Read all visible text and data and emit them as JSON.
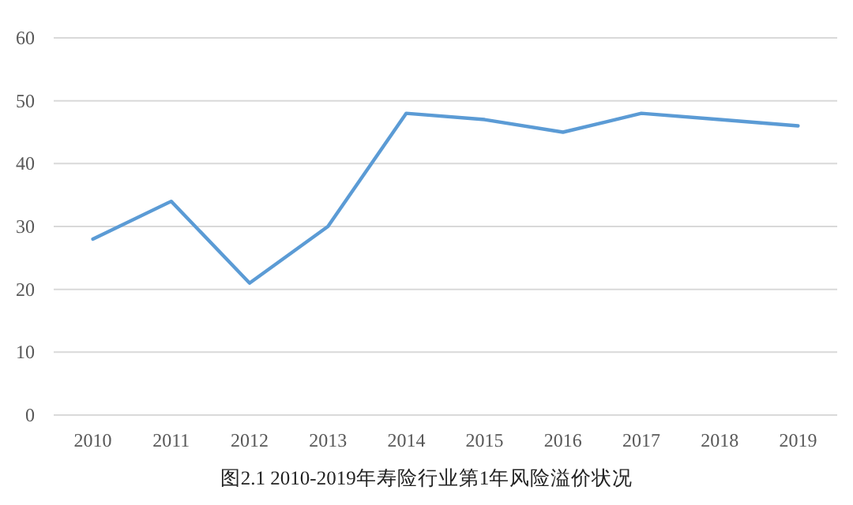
{
  "chart_data": {
    "type": "line",
    "title": "图2.1  2010-2019年寿险行业第1年风险溢价状况",
    "categories": [
      "2010",
      "2011",
      "2012",
      "2013",
      "2014",
      "2015",
      "2016",
      "2017",
      "2018",
      "2019"
    ],
    "values": [
      28,
      34,
      21,
      30,
      48,
      47,
      45,
      48,
      47,
      46
    ],
    "color": "#5b9bd5",
    "ylim": [
      0,
      60
    ],
    "yticks": [
      0,
      10,
      20,
      30,
      40,
      50,
      60
    ],
    "grid": "y",
    "marker": "none",
    "line_style": "solid"
  }
}
